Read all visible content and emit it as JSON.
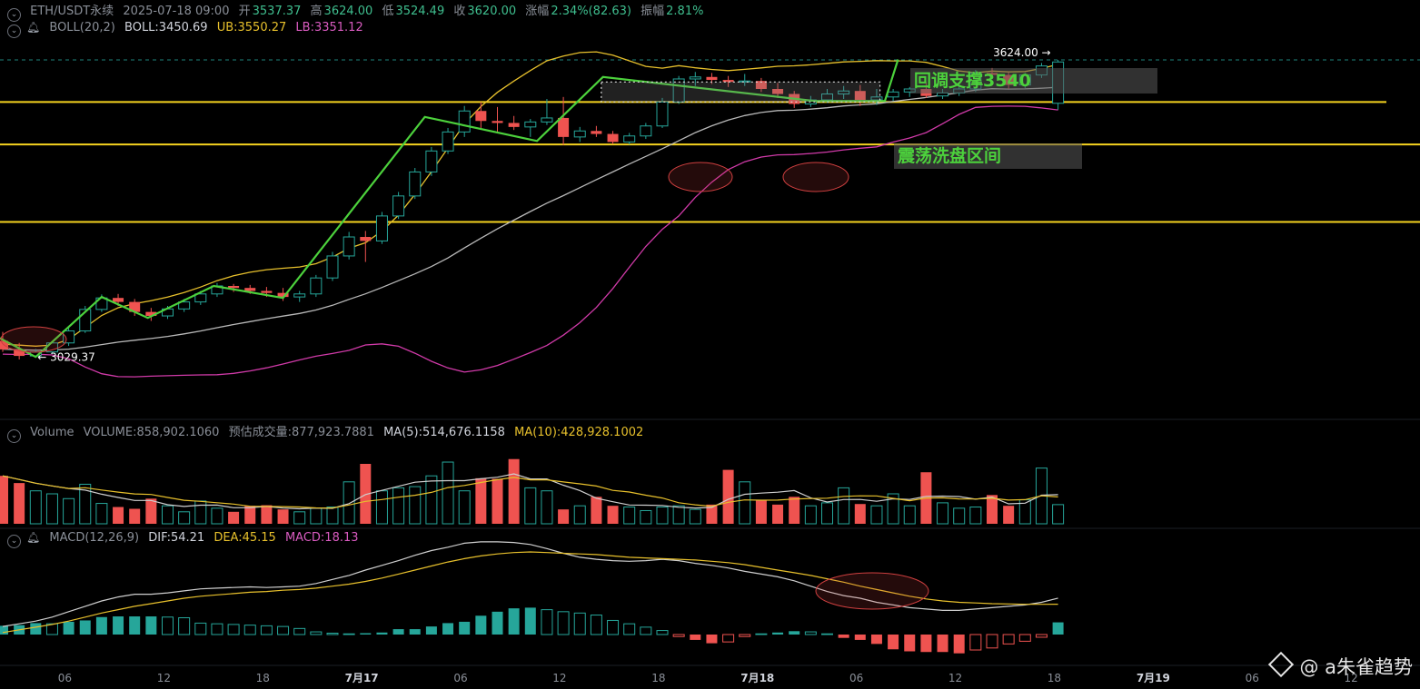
{
  "header": {
    "symbol": "ETH/USDT永续",
    "datetime": "2025-07-18 09:00",
    "open_label": "开",
    "open": "3537.37",
    "high_label": "高",
    "high": "3624.00",
    "low_label": "低",
    "low": "3524.49",
    "close_label": "收",
    "close": "3620.00",
    "change_label": "涨幅",
    "change": "2.34%(82.63)",
    "amplitude_label": "振幅",
    "amplitude": "2.81%"
  },
  "boll": {
    "name": "BOLL(20,2)",
    "mid": "BOLL:3450.69",
    "ub": "UB:3550.27",
    "lb": "LB:3351.12"
  },
  "volume_header": {
    "name": "Volume",
    "volume": "VOLUME:858,902.1060",
    "estimated": "预估成交量:877,923.7881",
    "ma5": "MA(5):514,676.1158",
    "ma10": "MA(10):428,928.1002"
  },
  "macd_header": {
    "name": "MACD(12,26,9)",
    "dif": "DIF:54.21",
    "dea": "DEA:45.15",
    "macd": "MACD:18.13"
  },
  "annotations": {
    "high_marker": "3624.00",
    "low_marker": "3029.37",
    "support_label": "回调支撑3540",
    "range_label": "震荡洗盘区间"
  },
  "watermark": "@ a朱雀趋势",
  "colors": {
    "up": "#26a69a",
    "down": "#ef5350",
    "hline": "#f5d31f",
    "zigzag": "#4cd13c",
    "boll_mid": "#b8b8b8",
    "boll_ub": "#e7c02c",
    "boll_lb": "#d03aa8"
  },
  "chart_data": {
    "type": "candlestick",
    "interval": "1h",
    "x_ticks": [
      "06",
      "12",
      "18",
      "7月17",
      "06",
      "12",
      "18",
      "7月18",
      "06",
      "12",
      "18",
      "7月19",
      "06",
      "12"
    ],
    "price_levels": [
      3540,
      3455,
      3300
    ],
    "candles": [
      {
        "o": 3062,
        "h": 3080,
        "l": 3040,
        "c": 3045
      },
      {
        "o": 3045,
        "h": 3058,
        "l": 3025,
        "c": 3032
      },
      {
        "o": 3032,
        "h": 3046,
        "l": 3029.37,
        "c": 3040
      },
      {
        "o": 3040,
        "h": 3062,
        "l": 3036,
        "c": 3058
      },
      {
        "o": 3058,
        "h": 3088,
        "l": 3052,
        "c": 3082
      },
      {
        "o": 3082,
        "h": 3132,
        "l": 3078,
        "c": 3125
      },
      {
        "o": 3125,
        "h": 3155,
        "l": 3120,
        "c": 3148
      },
      {
        "o": 3148,
        "h": 3156,
        "l": 3132,
        "c": 3140
      },
      {
        "o": 3140,
        "h": 3146,
        "l": 3112,
        "c": 3120
      },
      {
        "o": 3120,
        "h": 3128,
        "l": 3102,
        "c": 3112
      },
      {
        "o": 3112,
        "h": 3132,
        "l": 3106,
        "c": 3126
      },
      {
        "o": 3126,
        "h": 3146,
        "l": 3120,
        "c": 3140
      },
      {
        "o": 3140,
        "h": 3162,
        "l": 3134,
        "c": 3156
      },
      {
        "o": 3156,
        "h": 3178,
        "l": 3150,
        "c": 3172
      },
      {
        "o": 3172,
        "h": 3176,
        "l": 3160,
        "c": 3168
      },
      {
        "o": 3168,
        "h": 3174,
        "l": 3156,
        "c": 3162
      },
      {
        "o": 3162,
        "h": 3170,
        "l": 3150,
        "c": 3158
      },
      {
        "o": 3158,
        "h": 3168,
        "l": 3142,
        "c": 3150
      },
      {
        "o": 3150,
        "h": 3162,
        "l": 3140,
        "c": 3156
      },
      {
        "o": 3156,
        "h": 3194,
        "l": 3150,
        "c": 3188
      },
      {
        "o": 3188,
        "h": 3240,
        "l": 3182,
        "c": 3232
      },
      {
        "o": 3232,
        "h": 3280,
        "l": 3225,
        "c": 3270
      },
      {
        "o": 3270,
        "h": 3282,
        "l": 3220,
        "c": 3262
      },
      {
        "o": 3262,
        "h": 3320,
        "l": 3256,
        "c": 3312
      },
      {
        "o": 3312,
        "h": 3360,
        "l": 3306,
        "c": 3352
      },
      {
        "o": 3352,
        "h": 3408,
        "l": 3346,
        "c": 3400
      },
      {
        "o": 3400,
        "h": 3450,
        "l": 3392,
        "c": 3442
      },
      {
        "o": 3442,
        "h": 3488,
        "l": 3436,
        "c": 3480
      },
      {
        "o": 3480,
        "h": 3532,
        "l": 3470,
        "c": 3522
      },
      {
        "o": 3522,
        "h": 3540,
        "l": 3488,
        "c": 3502
      },
      {
        "o": 3502,
        "h": 3530,
        "l": 3480,
        "c": 3498
      },
      {
        "o": 3498,
        "h": 3512,
        "l": 3484,
        "c": 3490
      },
      {
        "o": 3490,
        "h": 3506,
        "l": 3470,
        "c": 3500
      },
      {
        "o": 3500,
        "h": 3546,
        "l": 3494,
        "c": 3508
      },
      {
        "o": 3508,
        "h": 3550,
        "l": 3454,
        "c": 3470
      },
      {
        "o": 3470,
        "h": 3490,
        "l": 3460,
        "c": 3482
      },
      {
        "o": 3482,
        "h": 3492,
        "l": 3470,
        "c": 3476
      },
      {
        "o": 3476,
        "h": 3482,
        "l": 3456,
        "c": 3460
      },
      {
        "o": 3460,
        "h": 3478,
        "l": 3455,
        "c": 3472
      },
      {
        "o": 3472,
        "h": 3498,
        "l": 3466,
        "c": 3492
      },
      {
        "o": 3492,
        "h": 3548,
        "l": 3488,
        "c": 3540
      },
      {
        "o": 3540,
        "h": 3592,
        "l": 3536,
        "c": 3586
      },
      {
        "o": 3586,
        "h": 3600,
        "l": 3572,
        "c": 3590
      },
      {
        "o": 3590,
        "h": 3598,
        "l": 3576,
        "c": 3584
      },
      {
        "o": 3584,
        "h": 3592,
        "l": 3570,
        "c": 3580
      },
      {
        "o": 3580,
        "h": 3596,
        "l": 3572,
        "c": 3582
      },
      {
        "o": 3582,
        "h": 3588,
        "l": 3560,
        "c": 3566
      },
      {
        "o": 3566,
        "h": 3578,
        "l": 3548,
        "c": 3556
      },
      {
        "o": 3556,
        "h": 3562,
        "l": 3528,
        "c": 3536
      },
      {
        "o": 3536,
        "h": 3552,
        "l": 3530,
        "c": 3544
      },
      {
        "o": 3544,
        "h": 3566,
        "l": 3538,
        "c": 3556
      },
      {
        "o": 3556,
        "h": 3572,
        "l": 3546,
        "c": 3562
      },
      {
        "o": 3562,
        "h": 3574,
        "l": 3532,
        "c": 3544
      },
      {
        "o": 3544,
        "h": 3566,
        "l": 3534,
        "c": 3550
      },
      {
        "o": 3550,
        "h": 3566,
        "l": 3542,
        "c": 3560
      },
      {
        "o": 3560,
        "h": 3570,
        "l": 3550,
        "c": 3566
      },
      {
        "o": 3566,
        "h": 3580,
        "l": 3548,
        "c": 3552
      },
      {
        "o": 3552,
        "h": 3566,
        "l": 3546,
        "c": 3558
      },
      {
        "o": 3558,
        "h": 3572,
        "l": 3552,
        "c": 3566
      },
      {
        "o": 3566,
        "h": 3604,
        "l": 3560,
        "c": 3598
      },
      {
        "o": 3598,
        "h": 3608,
        "l": 3586,
        "c": 3594
      },
      {
        "o": 3594,
        "h": 3600,
        "l": 3566,
        "c": 3574
      },
      {
        "o": 3574,
        "h": 3598,
        "l": 3568,
        "c": 3594
      },
      {
        "o": 3594,
        "h": 3618,
        "l": 3588,
        "c": 3612
      },
      {
        "o": 3537.37,
        "h": 3624,
        "l": 3524.49,
        "c": 3620
      }
    ],
    "volume": [
      8.0,
      6.8,
      5.5,
      5.0,
      4.2,
      6.6,
      3.4,
      2.8,
      2.5,
      4.2,
      3.0,
      2.0,
      3.8,
      2.6,
      2.0,
      3.0,
      3.1,
      2.4,
      2.0,
      2.6,
      2.8,
      7.0,
      10.0,
      5.5,
      6.0,
      6.2,
      8.0,
      10.3,
      5.5,
      7.6,
      7.5,
      10.8,
      6.0,
      5.5,
      2.4,
      3.0,
      4.5,
      3.0,
      2.8,
      2.2,
      2.8,
      3.0,
      2.4,
      3.2,
      9.0,
      7.0,
      4.0,
      3.2,
      4.5,
      3.0,
      3.5,
      6.0,
      3.3,
      3.0,
      5.0,
      3.0,
      8.6,
      3.5,
      2.6,
      2.8,
      4.8,
      3.0,
      4.0,
      9.3,
      3.2
    ],
    "macd_hist": [
      13,
      14,
      17,
      16,
      19,
      21,
      26,
      27,
      27,
      27,
      26,
      25,
      17,
      16,
      15,
      14,
      13,
      12,
      9,
      4,
      2,
      1,
      2,
      3,
      8,
      8,
      12,
      17,
      19,
      28,
      34,
      39,
      40,
      37,
      34,
      32,
      29,
      21,
      16,
      11,
      6,
      -3,
      -8,
      -13,
      -11,
      -3,
      1,
      3,
      5,
      4,
      1,
      -5,
      -8,
      -14,
      -22,
      -25,
      -26,
      -26,
      -28,
      -23,
      -20,
      -14,
      -10,
      -4,
      18.13
    ],
    "dif": [
      12,
      16,
      20,
      26,
      34,
      42,
      50,
      56,
      60,
      60,
      62,
      65,
      68,
      69,
      70,
      71,
      70,
      71,
      72,
      76,
      82,
      88,
      96,
      103,
      110,
      118,
      125,
      130,
      136,
      138,
      138,
      137,
      134,
      128,
      121,
      115,
      112,
      110,
      109,
      110,
      112,
      110,
      106,
      103,
      99,
      94,
      90,
      86,
      80,
      72,
      64,
      58,
      54,
      48,
      44,
      40,
      38,
      36,
      36,
      38,
      40,
      42,
      44,
      48,
      54.21
    ],
    "dea": [
      3,
      7,
      11,
      15,
      20,
      26,
      32,
      37,
      42,
      46,
      50,
      54,
      57,
      59,
      61,
      63,
      64,
      66,
      67,
      69,
      72,
      75,
      79,
      84,
      90,
      96,
      102,
      108,
      113,
      117,
      120,
      122,
      123,
      122,
      121,
      120,
      119,
      117,
      115,
      114,
      113,
      112,
      111,
      109,
      107,
      104,
      100,
      96,
      92,
      88,
      83,
      78,
      72,
      67,
      62,
      57,
      53,
      50,
      48,
      47,
      46,
      45.5,
      45,
      45,
      45.15
    ]
  }
}
